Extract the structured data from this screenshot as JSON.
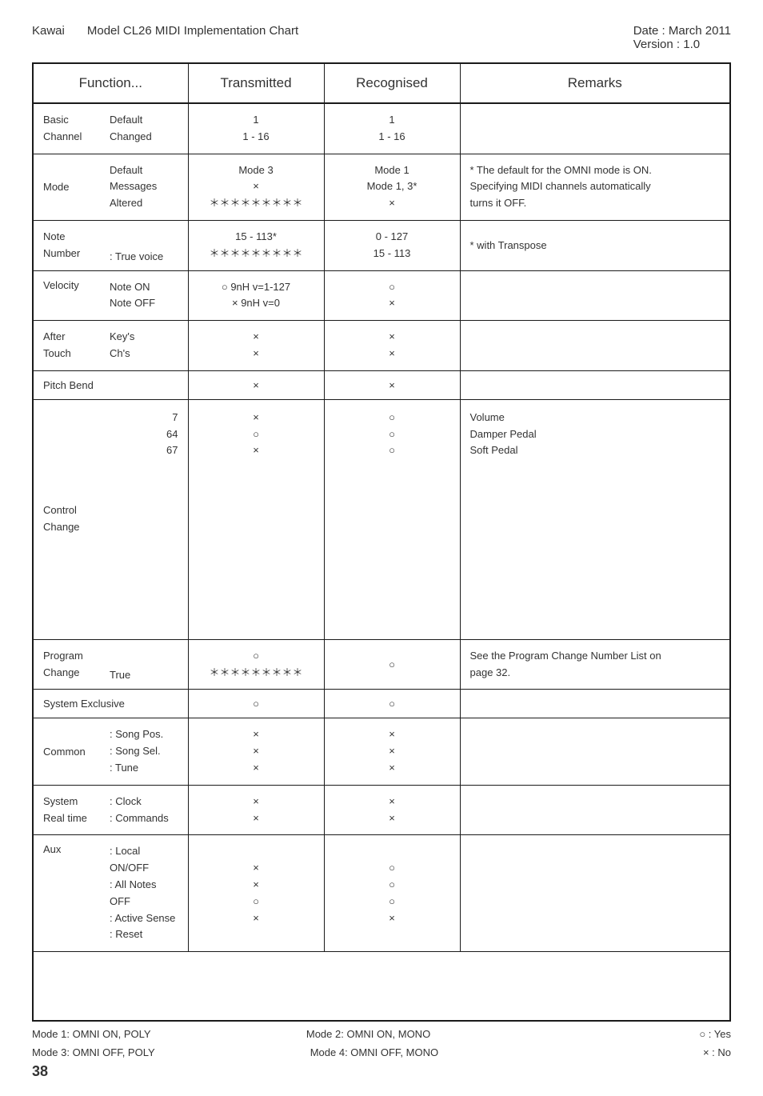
{
  "header": {
    "brand": "Kawai",
    "title": "Model CL26 MIDI Implementation Chart",
    "date": "Date : March 2011",
    "version": "Version : 1.0"
  },
  "columns": {
    "function": "Function...",
    "transmitted": "Transmitted",
    "recognised": "Recognised",
    "remarks": "Remarks"
  },
  "rows": {
    "basic_channel": {
      "left1": "Basic",
      "left2": "Channel",
      "right1": "Default",
      "right2": "Changed",
      "trans1": "1",
      "trans2": "1 - 16",
      "rec1": "1",
      "rec2": "1 - 16",
      "rem": ""
    },
    "mode": {
      "left": "Mode",
      "r1": "Default",
      "r2": "Messages",
      "r3": "Altered",
      "t1": "Mode 3",
      "t2": "×",
      "t3": "＊＊＊＊＊＊＊＊＊",
      "c1": "Mode 1",
      "c2": "Mode 1, 3*",
      "c3": "×",
      "rem1": "* The default for the OMNI mode is ON.",
      "rem2": "   Specifying MIDI channels automatically",
      "rem3": "   turns it OFF."
    },
    "note_number": {
      "left1": "Note",
      "left2": "Number",
      "right": ": True voice",
      "t1": "15 - 113*",
      "t2": "＊＊＊＊＊＊＊＊＊",
      "c1": "0 - 127",
      "c2": "15 - 113",
      "rem": "* with Transpose"
    },
    "velocity": {
      "left": "Velocity",
      "r1": "Note ON",
      "r2": "Note OFF",
      "t1": "○ 9nH v=1-127",
      "t2": "× 9nH v=0",
      "c1": "○",
      "c2": "×",
      "rem": ""
    },
    "after_touch": {
      "left1": "After",
      "left2": "Touch",
      "r1": "Key's",
      "r2": "Ch's",
      "t1": "×",
      "t2": "×",
      "c1": "×",
      "c2": "×",
      "rem": ""
    },
    "pitch_bend": {
      "left": "Pitch Bend",
      "t": "×",
      "c": "×",
      "rem": ""
    },
    "control_change": {
      "left1": "Control",
      "left2": "Change",
      "nums1": "7",
      "nums2": "64",
      "nums3": "67",
      "t1": "×",
      "t2": "○",
      "t3": "×",
      "c1": "○",
      "c2": "○",
      "c3": "○",
      "rem1": "Volume",
      "rem2": "Damper Pedal",
      "rem3": "Soft Pedal"
    },
    "program_change": {
      "left1": "Program",
      "left2": "Change",
      "right": "True",
      "t1": "○",
      "t2": "＊＊＊＊＊＊＊＊＊",
      "c": "○",
      "rem1": "See the Program Change Number List on",
      "rem2": "page 32."
    },
    "system_exclusive": {
      "left": "System Exclusive",
      "t": "○",
      "c": "○",
      "rem": ""
    },
    "common": {
      "left": "Common",
      "r1": ": Song Pos.",
      "r2": ": Song Sel.",
      "r3": ": Tune",
      "t1": "×",
      "t2": "×",
      "t3": "×",
      "c1": "×",
      "c2": "×",
      "c3": "×",
      "rem": ""
    },
    "system_realtime": {
      "left1": "System",
      "left2": "Real time",
      "r1": ": Clock",
      "r2": ": Commands",
      "t1": "×",
      "t2": "×",
      "c1": "×",
      "c2": "×",
      "rem": ""
    },
    "aux": {
      "left": "Aux",
      "r1": ": Local ON/OFF",
      "r2": ": All Notes OFF",
      "r3": ": Active Sense",
      "r4": ": Reset",
      "t1": "×",
      "t2": "×",
      "t3": "○",
      "t4": "×",
      "c1": "○",
      "c2": "○",
      "c3": "○",
      "c4": "×",
      "rem": ""
    }
  },
  "footer": {
    "m1": "Mode 1: OMNI ON, POLY",
    "m2": "Mode 2: OMNI ON, MONO",
    "m3": "Mode 3: OMNI OFF, POLY",
    "m4": "Mode 4: OMNI OFF, MONO",
    "yes": "○ : Yes",
    "no": "× : No",
    "page": "38"
  }
}
